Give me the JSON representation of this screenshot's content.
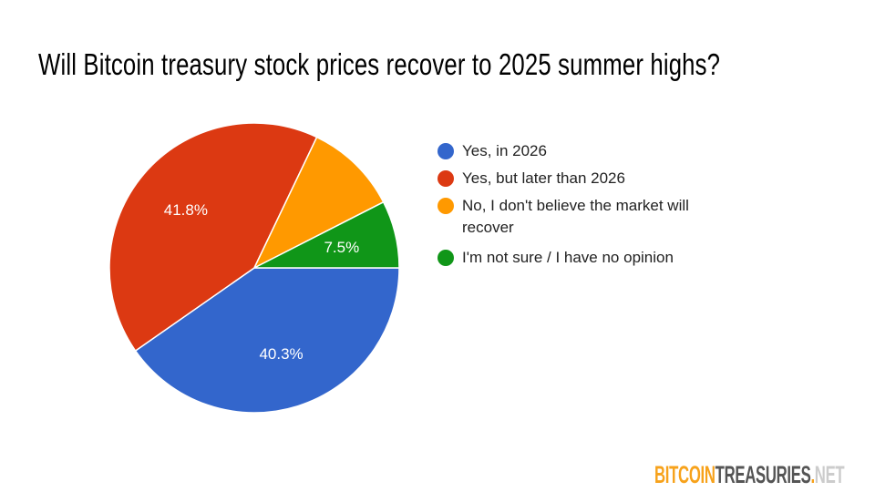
{
  "chart_data": {
    "type": "pie",
    "title": "Will Bitcoin treasury stock prices recover to 2025 summer highs?",
    "slices": [
      {
        "label": "Yes, in 2026",
        "value": 40.3,
        "display": "40.3%",
        "color": "#3366cc"
      },
      {
        "label": "Yes, but later than 2026",
        "value": 41.8,
        "display": "41.8%",
        "color": "#dc3912"
      },
      {
        "label": "No, I don't believe the market will recover",
        "value": 10.4,
        "display": "",
        "color": "#ff9900"
      },
      {
        "label": "I'm not sure / I have no opinion",
        "value": 7.5,
        "display": "7.5%",
        "color": "#109618"
      }
    ],
    "legend_position": "right"
  },
  "logo": {
    "part1": "BITCOIN",
    "part2": "TREASURIES",
    "dot": ".",
    "part3": "NET"
  }
}
